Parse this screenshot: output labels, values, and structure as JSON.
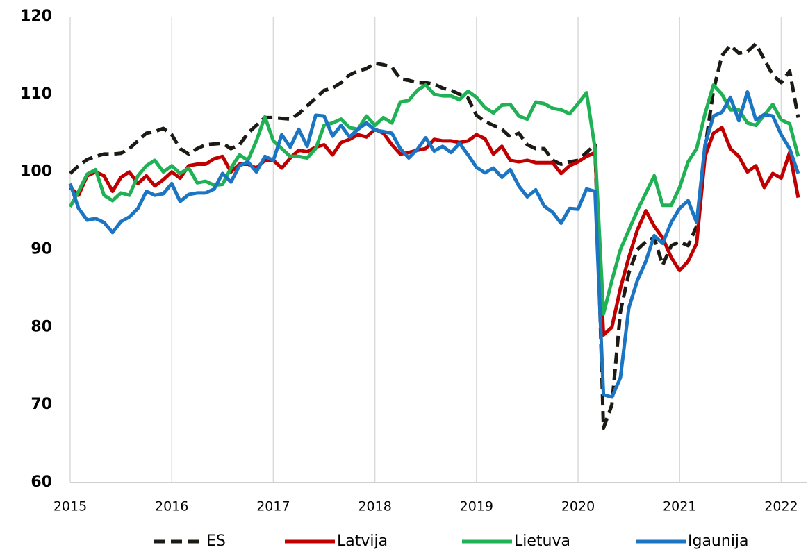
{
  "chart_data": {
    "type": "line",
    "x": [
      2015,
      2015.083,
      2015.167,
      2015.25,
      2015.333,
      2015.417,
      2015.5,
      2015.583,
      2015.667,
      2015.75,
      2015.833,
      2015.917,
      2016,
      2016.083,
      2016.167,
      2016.25,
      2016.333,
      2016.417,
      2016.5,
      2016.583,
      2016.667,
      2016.75,
      2016.833,
      2016.917,
      2017,
      2017.083,
      2017.167,
      2017.25,
      2017.333,
      2017.417,
      2017.5,
      2017.583,
      2017.667,
      2017.75,
      2017.833,
      2017.917,
      2018,
      2018.083,
      2018.167,
      2018.25,
      2018.333,
      2018.417,
      2018.5,
      2018.583,
      2018.667,
      2018.75,
      2018.833,
      2018.917,
      2019,
      2019.083,
      2019.167,
      2019.25,
      2019.333,
      2019.417,
      2019.5,
      2019.583,
      2019.667,
      2019.75,
      2019.833,
      2019.917,
      2020,
      2020.083,
      2020.167,
      2020.25,
      2020.333,
      2020.417,
      2020.5,
      2020.583,
      2020.667,
      2020.75,
      2020.833,
      2020.917,
      2021,
      2021.083,
      2021.167,
      2021.25,
      2021.333,
      2021.417,
      2021.5,
      2021.583,
      2021.667,
      2021.75,
      2021.833,
      2021.917,
      2022,
      2022.083,
      2022.167
    ],
    "series": [
      {
        "name": "ES",
        "color": "#1c1a14",
        "dash": "dashed",
        "values": [
          99.8,
          100.8,
          101.6,
          102.0,
          102.3,
          102.3,
          102.4,
          103.0,
          104.0,
          105.0,
          105.2,
          105.6,
          104.8,
          103.0,
          102.3,
          103.0,
          103.5,
          103.6,
          103.7,
          103.0,
          103.5,
          105.0,
          106.0,
          107.0,
          107.0,
          106.9,
          106.8,
          107.5,
          108.5,
          109.5,
          110.5,
          110.8,
          111.5,
          112.5,
          113.0,
          113.3,
          114.0,
          113.8,
          113.5,
          112.0,
          111.8,
          111.5,
          111.5,
          111.3,
          110.8,
          110.5,
          110.0,
          109.5,
          107.3,
          106.5,
          106.0,
          105.5,
          104.5,
          105.0,
          103.5,
          103.0,
          103.0,
          101.5,
          101.0,
          101.3,
          101.5,
          102.5,
          103.5,
          67.0,
          70.0,
          82.0,
          87.0,
          90.0,
          91.0,
          91.5,
          88.0,
          90.5,
          91.0,
          90.5,
          93.0,
          103.0,
          110.5,
          115.0,
          116.3,
          115.3,
          115.5,
          116.5,
          114.5,
          112.5,
          111.5,
          113.0,
          107.0
        ]
      },
      {
        "name": "Latvija",
        "color": "#c00000",
        "values": [
          98.0,
          97.0,
          99.5,
          100.0,
          99.5,
          97.5,
          99.3,
          100.0,
          98.5,
          99.5,
          98.2,
          99.0,
          100.0,
          99.2,
          100.8,
          101.0,
          101.0,
          101.7,
          102.0,
          100.0,
          101.0,
          101.0,
          100.5,
          101.5,
          101.5,
          100.5,
          101.8,
          102.8,
          102.6,
          103.2,
          103.5,
          102.2,
          103.8,
          104.2,
          104.8,
          104.5,
          105.5,
          105.0,
          103.5,
          102.3,
          102.5,
          102.8,
          103.0,
          104.2,
          104.0,
          104.0,
          103.8,
          104.0,
          104.8,
          104.3,
          102.3,
          103.3,
          101.5,
          101.3,
          101.5,
          101.2,
          101.2,
          101.2,
          99.8,
          100.8,
          101.3,
          102.0,
          102.5,
          79.0,
          80.0,
          85.0,
          89.0,
          92.5,
          95.0,
          93.0,
          91.5,
          89.0,
          87.3,
          88.5,
          90.8,
          102.0,
          105.0,
          105.7,
          103.0,
          102.0,
          100.0,
          100.8,
          98.0,
          99.8,
          99.2,
          102.5,
          96.7
        ]
      },
      {
        "name": "Lietuva",
        "color": "#1fb154",
        "values": [
          95.5,
          97.5,
          99.7,
          100.3,
          97.0,
          96.3,
          97.3,
          97.0,
          99.5,
          100.8,
          101.5,
          100.0,
          100.8,
          99.8,
          100.5,
          98.6,
          98.8,
          98.3,
          98.4,
          100.5,
          102.2,
          101.5,
          104.0,
          107.1,
          104.0,
          103.0,
          102.0,
          102.0,
          101.8,
          103.0,
          106.0,
          106.3,
          106.8,
          105.7,
          105.5,
          107.2,
          106.0,
          107.0,
          106.3,
          109.0,
          109.2,
          110.5,
          111.2,
          110.0,
          109.8,
          109.8,
          109.3,
          110.4,
          109.6,
          108.3,
          107.6,
          108.6,
          108.7,
          107.2,
          106.8,
          109.0,
          108.8,
          108.2,
          108.0,
          107.5,
          108.8,
          110.2,
          103.0,
          81.7,
          86.0,
          90.0,
          92.5,
          95.0,
          97.3,
          99.5,
          95.7,
          95.7,
          98.0,
          101.3,
          103.0,
          107.5,
          111.2,
          110.0,
          108.0,
          108.0,
          106.3,
          106.0,
          107.3,
          108.7,
          106.7,
          106.2,
          102.0
        ]
      },
      {
        "name": "Igaunija",
        "color": "#1b75c3",
        "values": [
          98.5,
          95.3,
          93.8,
          94.0,
          93.5,
          92.2,
          93.6,
          94.2,
          95.3,
          97.5,
          97.0,
          97.2,
          98.5,
          96.2,
          97.1,
          97.3,
          97.3,
          97.8,
          99.8,
          98.7,
          100.8,
          101.3,
          100.0,
          102.0,
          101.5,
          104.8,
          103.2,
          105.5,
          103.3,
          107.3,
          107.2,
          104.6,
          106.0,
          104.5,
          105.5,
          106.3,
          105.4,
          105.2,
          105.0,
          103.0,
          101.8,
          102.9,
          104.4,
          102.7,
          103.3,
          102.5,
          103.7,
          102.2,
          100.6,
          99.9,
          100.5,
          99.3,
          100.3,
          98.2,
          96.8,
          97.7,
          95.6,
          94.8,
          93.4,
          95.3,
          95.2,
          97.8,
          97.5,
          71.3,
          71.0,
          73.5,
          82.5,
          86.0,
          88.5,
          91.8,
          90.8,
          93.5,
          95.3,
          96.3,
          93.5,
          103.5,
          107.2,
          107.7,
          109.6,
          106.6,
          110.3,
          106.7,
          107.4,
          107.2,
          104.8,
          103.0,
          99.8
        ]
      }
    ],
    "xlim": [
      2015,
      2022.25
    ],
    "xticks": [
      2015,
      2016,
      2017,
      2018,
      2019,
      2020,
      2021,
      2022
    ],
    "ylim": [
      60,
      120
    ],
    "yticks": [
      60,
      70,
      80,
      90,
      100,
      110,
      120
    ],
    "grid": "x",
    "legend": "bottom"
  }
}
